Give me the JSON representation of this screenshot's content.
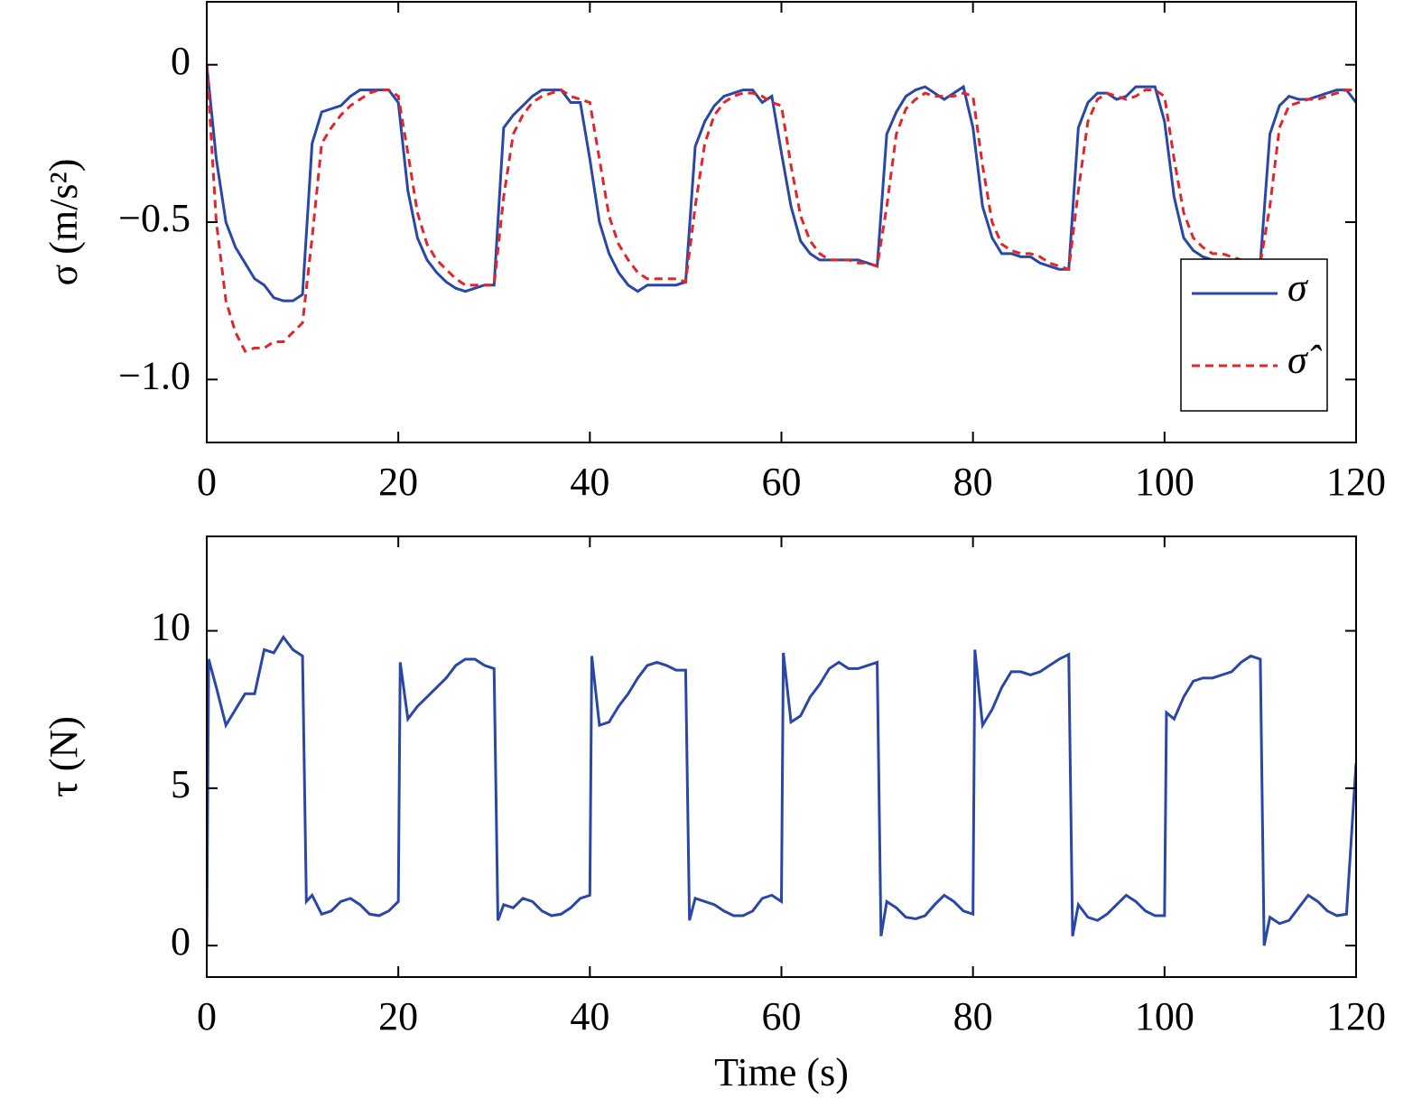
{
  "chart_data": [
    {
      "type": "line",
      "ylabel": "σ (m/s²)",
      "legend": "lower right",
      "xlim": [
        0,
        120
      ],
      "xticks": [
        0,
        20,
        40,
        60,
        80,
        100,
        120
      ],
      "ylim": [
        -1.2,
        0.2
      ],
      "yticks": [
        0,
        {
          "value": -0.5,
          "label": "−0.5"
        },
        {
          "value": -1.0,
          "label": "−1.0"
        }
      ],
      "x": [
        0,
        1,
        2,
        3,
        4,
        5,
        6,
        7,
        8,
        9,
        10,
        11,
        12,
        13,
        14,
        15,
        16,
        17,
        18,
        19,
        20,
        21,
        22,
        23,
        24,
        25,
        26,
        27,
        28,
        29,
        30,
        31,
        32,
        33,
        34,
        35,
        36,
        37,
        38,
        39,
        40,
        41,
        42,
        43,
        44,
        45,
        46,
        47,
        48,
        49,
        50,
        51,
        52,
        53,
        54,
        55,
        56,
        57,
        58,
        59,
        60,
        61,
        62,
        63,
        64,
        65,
        66,
        67,
        68,
        69,
        70,
        71,
        72,
        73,
        74,
        75,
        76,
        77,
        78,
        79,
        80,
        81,
        82,
        83,
        84,
        85,
        86,
        87,
        88,
        89,
        90,
        91,
        92,
        93,
        94,
        95,
        96,
        97,
        98,
        99,
        100,
        101,
        102,
        103,
        104,
        105,
        106,
        107,
        108,
        109,
        110,
        111,
        112,
        113,
        114,
        115,
        116,
        117,
        118,
        119,
        120
      ],
      "series": [
        {
          "name": "σ",
          "color": "#2b47a6",
          "linestyle": "solid",
          "values": [
            0,
            -0.3,
            -0.5,
            -0.58,
            -0.63,
            -0.68,
            -0.7,
            -0.74,
            -0.75,
            -0.75,
            -0.73,
            -0.25,
            -0.15,
            -0.14,
            -0.13,
            -0.1,
            -0.08,
            -0.08,
            -0.08,
            -0.08,
            -0.12,
            -0.4,
            -0.55,
            -0.62,
            -0.66,
            -0.69,
            -0.71,
            -0.72,
            -0.71,
            -0.7,
            -0.7,
            -0.2,
            -0.16,
            -0.13,
            -0.1,
            -0.08,
            -0.08,
            -0.08,
            -0.12,
            -0.12,
            -0.3,
            -0.5,
            -0.6,
            -0.66,
            -0.7,
            -0.72,
            -0.7,
            -0.7,
            -0.7,
            -0.7,
            -0.69,
            -0.26,
            -0.18,
            -0.13,
            -0.1,
            -0.09,
            -0.08,
            -0.08,
            -0.12,
            -0.1,
            -0.28,
            -0.45,
            -0.56,
            -0.6,
            -0.62,
            -0.62,
            -0.62,
            -0.62,
            -0.62,
            -0.63,
            -0.64,
            -0.22,
            -0.15,
            -0.1,
            -0.08,
            -0.07,
            -0.09,
            -0.11,
            -0.09,
            -0.07,
            -0.2,
            -0.45,
            -0.55,
            -0.6,
            -0.6,
            -0.61,
            -0.61,
            -0.63,
            -0.64,
            -0.65,
            -0.65,
            -0.2,
            -0.12,
            -0.09,
            -0.09,
            -0.11,
            -0.1,
            -0.07,
            -0.07,
            -0.07,
            -0.18,
            -0.42,
            -0.55,
            -0.59,
            -0.61,
            -0.62,
            -0.63,
            -0.63,
            -0.65,
            -0.65,
            -0.63,
            -0.22,
            -0.13,
            -0.1,
            -0.11,
            -0.11,
            -0.1,
            -0.09,
            -0.08,
            -0.08,
            -0.12
          ]
        },
        {
          "name": "σ̂",
          "color": "#e0262b",
          "linestyle": "dashed",
          "values": [
            0,
            -0.5,
            -0.75,
            -0.85,
            -0.91,
            -0.9,
            -0.9,
            -0.88,
            -0.88,
            -0.85,
            -0.82,
            -0.55,
            -0.25,
            -0.2,
            -0.16,
            -0.13,
            -0.11,
            -0.09,
            -0.08,
            -0.08,
            -0.1,
            -0.28,
            -0.47,
            -0.57,
            -0.62,
            -0.65,
            -0.68,
            -0.7,
            -0.7,
            -0.7,
            -0.7,
            -0.42,
            -0.22,
            -0.16,
            -0.12,
            -0.1,
            -0.09,
            -0.08,
            -0.1,
            -0.11,
            -0.12,
            -0.3,
            -0.48,
            -0.57,
            -0.62,
            -0.66,
            -0.68,
            -0.68,
            -0.68,
            -0.68,
            -0.69,
            -0.45,
            -0.25,
            -0.16,
            -0.12,
            -0.1,
            -0.09,
            -0.09,
            -0.1,
            -0.12,
            -0.13,
            -0.32,
            -0.48,
            -0.56,
            -0.6,
            -0.62,
            -0.62,
            -0.62,
            -0.63,
            -0.63,
            -0.64,
            -0.45,
            -0.22,
            -0.14,
            -0.11,
            -0.09,
            -0.1,
            -0.1,
            -0.1,
            -0.09,
            -0.1,
            -0.32,
            -0.5,
            -0.57,
            -0.59,
            -0.6,
            -0.6,
            -0.61,
            -0.63,
            -0.64,
            -0.65,
            -0.4,
            -0.18,
            -0.11,
            -0.09,
            -0.1,
            -0.11,
            -0.1,
            -0.08,
            -0.08,
            -0.1,
            -0.3,
            -0.47,
            -0.55,
            -0.58,
            -0.6,
            -0.6,
            -0.61,
            -0.62,
            -0.63,
            -0.63,
            -0.45,
            -0.2,
            -0.13,
            -0.12,
            -0.11,
            -0.11,
            -0.1,
            -0.09,
            -0.08,
            -0.08
          ]
        }
      ]
    },
    {
      "type": "line",
      "ylabel": "τ (N)",
      "xlabel": "Time (s)",
      "xlim": [
        0,
        120
      ],
      "xticks": [
        0,
        20,
        40,
        60,
        80,
        100,
        120
      ],
      "ylim": [
        -1,
        13
      ],
      "yticks": [
        0,
        5,
        10
      ],
      "x": [
        0,
        0.2,
        1,
        2,
        3,
        4,
        5,
        6,
        7,
        8,
        9,
        10,
        10.4,
        11,
        12,
        13,
        14,
        15,
        16,
        17,
        18,
        19,
        20,
        20.2,
        21,
        22,
        23,
        24,
        25,
        26,
        27,
        28,
        29,
        30,
        30.4,
        31,
        32,
        33,
        34,
        35,
        36,
        37,
        38,
        39,
        40,
        40.2,
        41,
        42,
        43,
        44,
        45,
        46,
        47,
        48,
        49,
        50,
        50.4,
        51,
        52,
        53,
        54,
        55,
        56,
        57,
        58,
        59,
        60,
        60.2,
        61,
        62,
        63,
        64,
        65,
        66,
        67,
        68,
        69,
        70,
        70.4,
        71,
        72,
        73,
        74,
        75,
        76,
        77,
        78,
        79,
        80,
        80.2,
        81,
        82,
        83,
        84,
        85,
        86,
        87,
        88,
        89,
        90,
        90.4,
        91,
        92,
        93,
        94,
        95,
        96,
        97,
        98,
        99,
        100,
        100.2,
        101,
        102,
        103,
        104,
        105,
        106,
        107,
        108,
        109,
        110,
        110.4,
        111,
        112,
        113,
        114,
        115,
        116,
        117,
        118,
        119,
        120
      ],
      "series": [
        {
          "name": "τ",
          "color": "#2b47a6",
          "linestyle": "solid",
          "values": [
            0,
            9.1,
            8.2,
            7.0,
            7.5,
            8.0,
            8.0,
            9.4,
            9.3,
            9.8,
            9.4,
            9.2,
            1.4,
            1.6,
            1.0,
            1.1,
            1.4,
            1.5,
            1.3,
            1.0,
            0.95,
            1.1,
            1.4,
            9.0,
            7.2,
            7.6,
            7.9,
            8.2,
            8.5,
            8.9,
            9.1,
            9.1,
            8.9,
            8.8,
            0.8,
            1.3,
            1.2,
            1.5,
            1.4,
            1.1,
            0.95,
            1.0,
            1.2,
            1.5,
            1.6,
            9.2,
            7.0,
            7.1,
            7.6,
            8.0,
            8.5,
            8.9,
            9.0,
            8.9,
            8.75,
            8.75,
            0.8,
            1.5,
            1.4,
            1.3,
            1.1,
            0.95,
            0.95,
            1.1,
            1.5,
            1.6,
            1.4,
            9.3,
            7.1,
            7.3,
            7.9,
            8.3,
            8.8,
            9.0,
            8.8,
            8.8,
            8.9,
            9.0,
            0.3,
            1.4,
            1.2,
            0.9,
            0.85,
            0.95,
            1.3,
            1.6,
            1.4,
            1.1,
            1.0,
            9.4,
            7.0,
            7.5,
            8.2,
            8.7,
            8.7,
            8.6,
            8.7,
            8.9,
            9.1,
            9.25,
            0.3,
            1.3,
            0.9,
            0.8,
            1.0,
            1.3,
            1.6,
            1.4,
            1.1,
            0.95,
            0.95,
            7.4,
            7.2,
            7.9,
            8.4,
            8.5,
            8.5,
            8.6,
            8.7,
            9.0,
            9.2,
            9.1,
            0.0,
            0.9,
            0.7,
            0.8,
            1.2,
            1.6,
            1.4,
            1.1,
            0.95,
            1.0,
            5.8
          ]
        }
      ]
    }
  ]
}
